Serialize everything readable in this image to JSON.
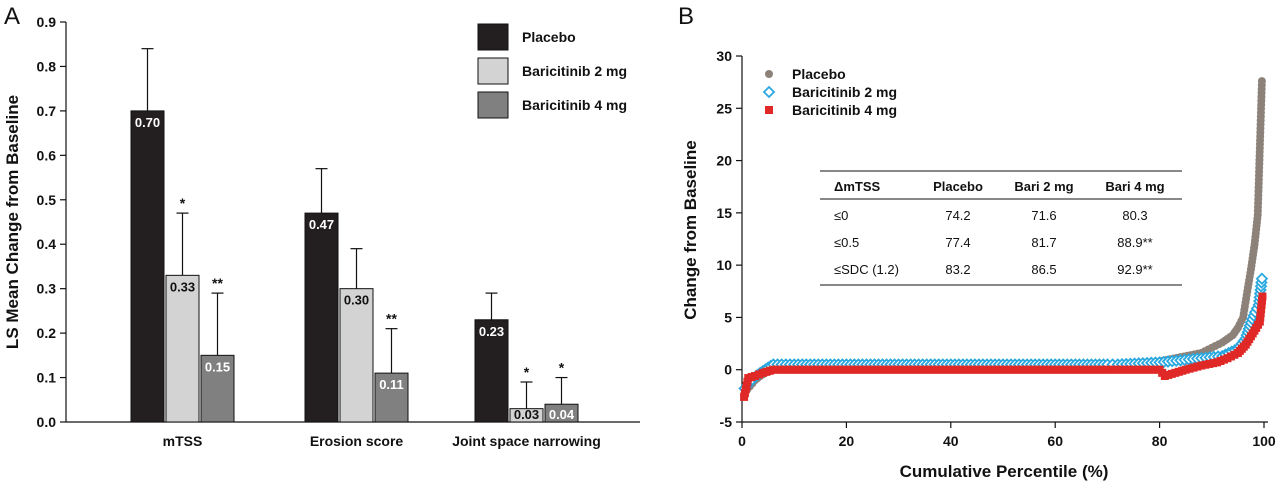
{
  "panels": {
    "a_label": "A",
    "b_label": "B"
  },
  "chart_data": [
    {
      "type": "bar",
      "ylabel": "LS Mean Change from Baseline",
      "xlabel": "",
      "ylim": [
        0,
        0.9
      ],
      "yticks": [
        "0.0",
        "0.1",
        "0.2",
        "0.3",
        "0.4",
        "0.5",
        "0.6",
        "0.7",
        "0.8",
        "0.9"
      ],
      "categories": [
        "mTSS",
        "Erosion score",
        "Joint space narrowing"
      ],
      "legend_position": "top-right",
      "series": [
        {
          "name": "Placebo",
          "color": "#231f20",
          "label_color": "#ffffff",
          "values": [
            0.7,
            0.47,
            0.23
          ],
          "labels": [
            "0.70",
            "0.47",
            "0.23"
          ],
          "error_upper": [
            0.84,
            0.57,
            0.29
          ],
          "sig": [
            "",
            "",
            ""
          ]
        },
        {
          "name": "Baricitinib 2 mg",
          "color": "#d3d3d3",
          "label_color": "#111111",
          "values": [
            0.33,
            0.3,
            0.03
          ],
          "labels": [
            "0.33",
            "0.30",
            "0.03"
          ],
          "error_upper": [
            0.47,
            0.39,
            0.09
          ],
          "sig": [
            "*",
            "",
            "*"
          ]
        },
        {
          "name": "Baricitinib 4 mg",
          "color": "#808080",
          "label_color": "#ffffff",
          "values": [
            0.15,
            0.11,
            0.04
          ],
          "labels": [
            "0.15",
            "0.11",
            "0.04"
          ],
          "error_upper": [
            0.29,
            0.21,
            0.1
          ],
          "sig": [
            "**",
            "**",
            "*"
          ]
        }
      ]
    },
    {
      "type": "scatter",
      "xlabel": "Cumulative Percentile (%)",
      "ylabel": "Change from Baseline",
      "xlim": [
        0,
        100
      ],
      "ylim": [
        -5,
        30
      ],
      "xticks": [
        "0",
        "20",
        "40",
        "60",
        "80",
        "100"
      ],
      "yticks": [
        "-5",
        "0",
        "5",
        "10",
        "15",
        "20",
        "25",
        "30"
      ],
      "legend_position": "top-left",
      "series": [
        {
          "name": "Placebo",
          "marker": "circle",
          "color": "#8c8279",
          "points": [
            [
              0.5,
              -2.2
            ],
            [
              1.5,
              -1.6
            ],
            [
              2.5,
              -1.0
            ],
            [
              3.5,
              -0.6
            ],
            [
              4.5,
              -0.3
            ],
            [
              6,
              0
            ],
            [
              10,
              0
            ],
            [
              20,
              0
            ],
            [
              30,
              0
            ],
            [
              40,
              0
            ],
            [
              50,
              0
            ],
            [
              60,
              0
            ],
            [
              70,
              0
            ],
            [
              72,
              0.3
            ],
            [
              76,
              0.5
            ],
            [
              80,
              0.8
            ],
            [
              84,
              1.2
            ],
            [
              88,
              1.6
            ],
            [
              90,
              2.1
            ],
            [
              92,
              2.6
            ],
            [
              94,
              3.3
            ],
            [
              95,
              4.0
            ],
            [
              96,
              5.0
            ],
            [
              96.8,
              7.5
            ],
            [
              97.5,
              9.6
            ],
            [
              98.2,
              12
            ],
            [
              98.8,
              14.8
            ],
            [
              99.6,
              27.6
            ]
          ]
        },
        {
          "name": "Baricitinib 2 mg",
          "marker": "diamond",
          "color": "#29a8e0",
          "points": [
            [
              0.5,
              -1.8
            ],
            [
              1.5,
              -1.2
            ],
            [
              2.5,
              -0.7
            ],
            [
              3.5,
              -0.3
            ],
            [
              5,
              0.2
            ],
            [
              6,
              0.5
            ],
            [
              10,
              0.5
            ],
            [
              20,
              0.5
            ],
            [
              30,
              0.5
            ],
            [
              40,
              0.5
            ],
            [
              50,
              0.5
            ],
            [
              60,
              0.5
            ],
            [
              70,
              0.5
            ],
            [
              72,
              0.5
            ],
            [
              76,
              0.6
            ],
            [
              80,
              0.7
            ],
            [
              84,
              0.9
            ],
            [
              88,
              1.1
            ],
            [
              92,
              1.3
            ],
            [
              95,
              2.0
            ],
            [
              96.5,
              3.0
            ],
            [
              97.5,
              4.5
            ],
            [
              98.3,
              5.5
            ],
            [
              99,
              6.2
            ],
            [
              99.6,
              8.7
            ]
          ]
        },
        {
          "name": "Baricitinib 4 mg",
          "marker": "square",
          "color": "#e02826",
          "points": [
            [
              0.4,
              -2.6
            ],
            [
              1.2,
              -0.8
            ],
            [
              2.5,
              -0.6
            ],
            [
              4,
              -0.3
            ],
            [
              6,
              0
            ],
            [
              10,
              0
            ],
            [
              20,
              0
            ],
            [
              30,
              0
            ],
            [
              40,
              0
            ],
            [
              50,
              0
            ],
            [
              60,
              0
            ],
            [
              70,
              0
            ],
            [
              80,
              0
            ],
            [
              81,
              -0.6
            ],
            [
              85,
              0
            ],
            [
              88,
              0.4
            ],
            [
              91,
              0.7
            ],
            [
              93,
              1.1
            ],
            [
              95,
              1.6
            ],
            [
              96.5,
              2.4
            ],
            [
              97.5,
              3.2
            ],
            [
              98.5,
              4.0
            ],
            [
              99.2,
              4.6
            ],
            [
              99.7,
              7.0
            ]
          ]
        }
      ],
      "table": {
        "headers": [
          "ΔmTSS",
          "Placebo",
          "Bari 2 mg",
          "Bari 4 mg"
        ],
        "rows": [
          [
            "≤0",
            "74.2",
            "71.6",
            "80.3"
          ],
          [
            "≤0.5",
            "77.4",
            "81.7",
            "88.9**"
          ],
          [
            "≤SDC (1.2)",
            "83.2",
            "86.5",
            "92.9**"
          ]
        ]
      }
    }
  ]
}
